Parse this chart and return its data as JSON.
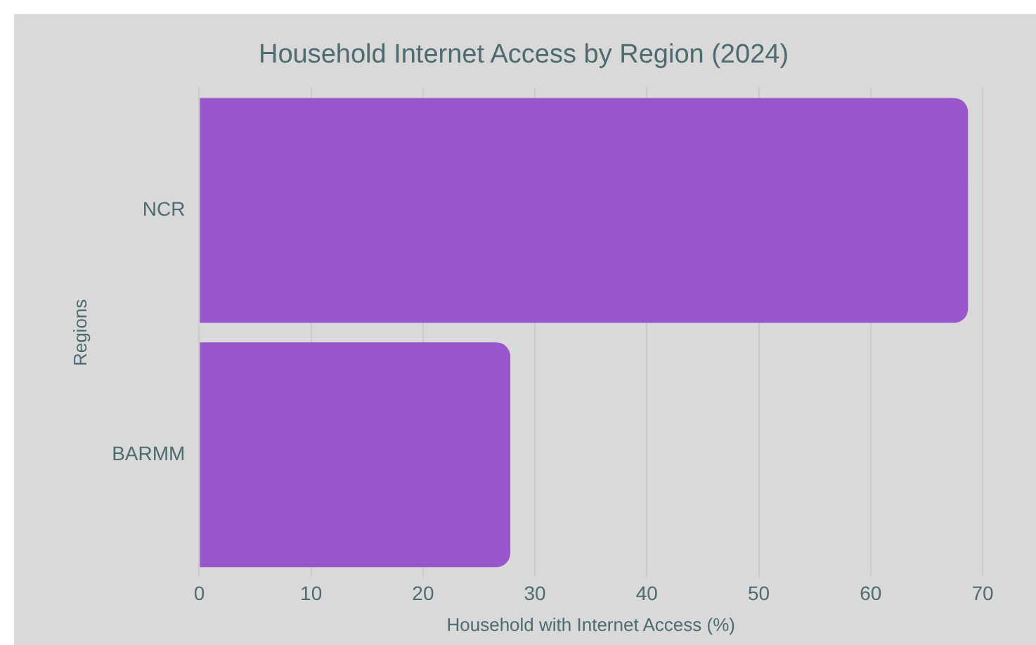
{
  "chart_data": {
    "type": "bar",
    "orientation": "horizontal",
    "title": "Household Internet Access by Region (2024)",
    "xlabel": "Household with Internet Access (%)",
    "ylabel": "Regions",
    "categories": [
      "NCR",
      "BARMM"
    ],
    "values": [
      68.7,
      27.8
    ],
    "color": "#9a57cb",
    "xlim": [
      0,
      70
    ],
    "xticks": [
      0,
      10,
      20,
      30,
      40,
      50,
      60,
      70
    ],
    "grid": "x",
    "legend": false
  }
}
